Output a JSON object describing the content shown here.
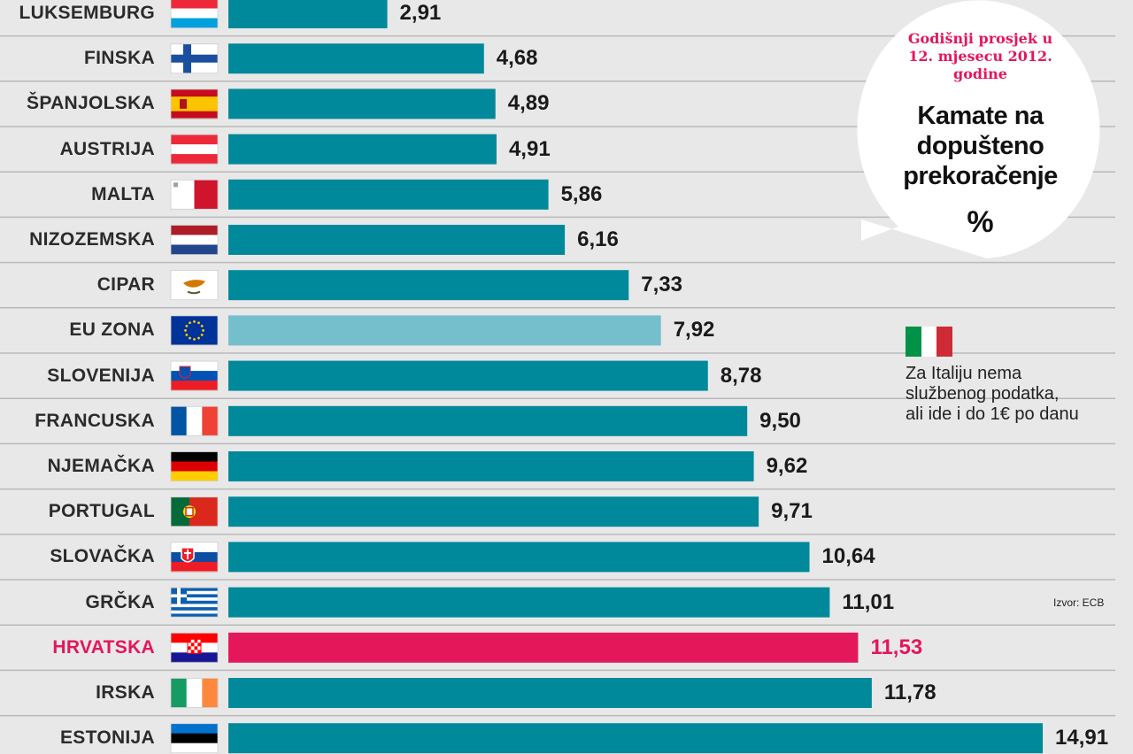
{
  "chart_data": {
    "type": "bar",
    "orientation": "horizontal",
    "categories": [
      "LUKSEMBURG",
      "FINSKA",
      "ŠPANJOLSKA",
      "AUSTRIJA",
      "MALTA",
      "NIZOZEMSKA",
      "CIPAR",
      "EU ZONA",
      "SLOVENIJA",
      "FRANCUSKA",
      "NJEMAČKA",
      "PORTUGAL",
      "SLOVAČKA",
      "GRČKA",
      "HRVATSKA",
      "IRSKA",
      "ESTONIJA"
    ],
    "values": [
      2.91,
      4.68,
      4.89,
      4.91,
      5.86,
      6.16,
      7.33,
      7.92,
      8.78,
      9.5,
      9.62,
      9.71,
      10.64,
      11.01,
      11.53,
      11.78,
      14.91
    ],
    "value_labels": [
      "2,91",
      "4,68",
      "4,89",
      "4,91",
      "5,86",
      "6,16",
      "7,33",
      "7,92",
      "8,78",
      "9,50",
      "9,62",
      "9,71",
      "10,64",
      "11,01",
      "11,53",
      "11,78",
      "14,91"
    ],
    "flags": [
      "luxembourg-flag",
      "finland-flag",
      "spain-flag",
      "austria-flag",
      "malta-flag",
      "netherlands-flag",
      "cyprus-flag",
      "eu-flag",
      "slovenia-flag",
      "france-flag",
      "germany-flag",
      "portugal-flag",
      "slovakia-flag",
      "greece-flag",
      "croatia-flag",
      "ireland-flag",
      "estonia-flag"
    ],
    "highlight": {
      "EU ZONA": "light",
      "HRVATSKA": "accent"
    },
    "title": "Kamate na dopušteno prekoračenje",
    "subtitle": "Godišnji prosjek u 12. mjesecu 2012. godine",
    "unit": "%",
    "xlim": [
      0,
      15
    ],
    "grid": false
  },
  "subtitle_lines": [
    "Godišnji prosjek u",
    "12. mjesecu 2012.",
    "godine"
  ],
  "title_lines": [
    "Kamate na",
    "dopušteno",
    "prekoračenje"
  ],
  "note_lines": [
    "Za Italiju nema",
    "službenog podatka,",
    "ali ide i do 1€ po danu"
  ],
  "note_flag": "italy-flag",
  "source": "Izvor: ECB",
  "colors": {
    "bar": "#00899a",
    "eu_bar": "#75bfcc",
    "accent": "#e3175a",
    "background": "#e8e8e8",
    "row_line": "#b9b9b9",
    "text": "#2b2b2b"
  }
}
